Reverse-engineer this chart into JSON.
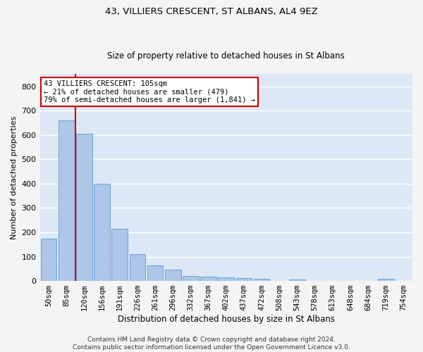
{
  "title": "43, VILLIERS CRESCENT, ST ALBANS, AL4 9EZ",
  "subtitle": "Size of property relative to detached houses in St Albans",
  "xlabel": "Distribution of detached houses by size in St Albans",
  "ylabel": "Number of detached properties",
  "categories": [
    "50sqm",
    "85sqm",
    "120sqm",
    "156sqm",
    "191sqm",
    "226sqm",
    "261sqm",
    "296sqm",
    "332sqm",
    "367sqm",
    "402sqm",
    "437sqm",
    "472sqm",
    "508sqm",
    "543sqm",
    "578sqm",
    "613sqm",
    "648sqm",
    "684sqm",
    "719sqm",
    "754sqm"
  ],
  "values": [
    175,
    660,
    605,
    400,
    215,
    110,
    63,
    47,
    20,
    17,
    15,
    12,
    8,
    0,
    7,
    0,
    0,
    0,
    0,
    8,
    0
  ],
  "bar_color": "#aec6e8",
  "bar_edge_color": "#5b9bd5",
  "vline_x": 1.5,
  "vline_color": "#cc0000",
  "annotation_line1": "43 VILLIERS CRESCENT: 105sqm",
  "annotation_line2": "← 21% of detached houses are smaller (479)",
  "annotation_line3": "79% of semi-detached houses are larger (1,841) →",
  "annotation_box_color": "#ffffff",
  "annotation_box_edge_color": "#cc0000",
  "ylim": [
    0,
    850
  ],
  "yticks": [
    0,
    100,
    200,
    300,
    400,
    500,
    600,
    700,
    800
  ],
  "background_color": "#dce8f5",
  "grid_color": "#ffffff",
  "title_fontsize": 9.5,
  "subtitle_fontsize": 8.5,
  "ylabel_fontsize": 8,
  "xlabel_fontsize": 8.5,
  "tick_fontsize": 7.5,
  "annotation_fontsize": 7.5,
  "footer_text": "Contains HM Land Registry data © Crown copyright and database right 2024.\nContains public sector information licensed under the Open Government Licence v3.0.",
  "footer_fontsize": 6.5,
  "fig_facecolor": "#f4f4f4"
}
